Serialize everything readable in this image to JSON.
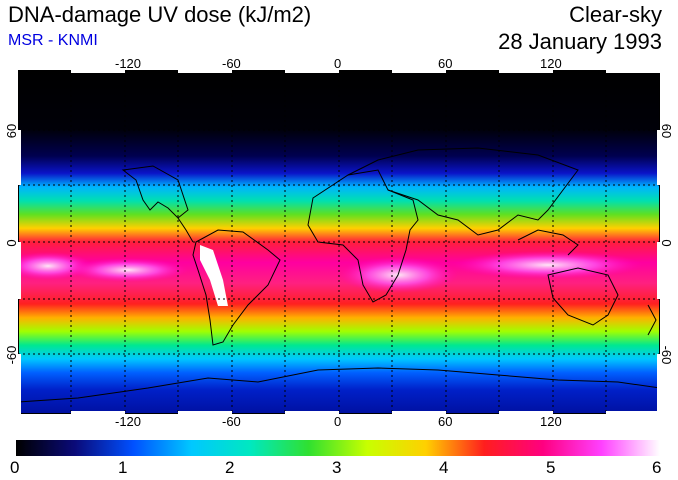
{
  "header": {
    "title": "DNA-damage UV dose (kJ/m2)",
    "source": "MSR - KNMI",
    "condition": "Clear-sky",
    "date": "28 January 1993"
  },
  "map": {
    "lon_ticks_top": [
      "-120",
      "-60",
      "0",
      "60",
      "120"
    ],
    "lon_ticks_bottom": [
      "-120",
      "-60",
      "0",
      "60",
      "120"
    ],
    "lat_ticks_left": [
      "60",
      "0",
      "-60"
    ],
    "lat_ticks_right": [
      "60",
      "0",
      "-60"
    ]
  },
  "colorbar": {
    "labels": [
      "0",
      "1",
      "2",
      "3",
      "4",
      "5",
      "6"
    ],
    "min": 0,
    "max": 6,
    "colors": [
      "#000000",
      "#0a0a78",
      "#0050ff",
      "#00c8ff",
      "#00e8c0",
      "#30e030",
      "#c8ff00",
      "#ffd000",
      "#ff1e1e",
      "#ff0080",
      "#ff40ff",
      "#ffffff"
    ]
  }
}
